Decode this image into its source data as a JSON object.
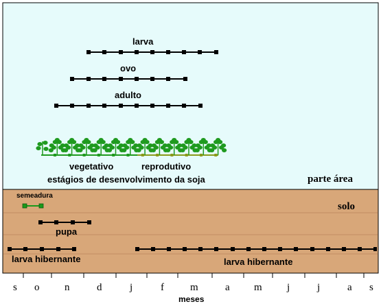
{
  "upper_zone": {
    "label": "parte área",
    "color": "#e6fbfb"
  },
  "lower_zone": {
    "label": "solo",
    "color": "#d8a779"
  },
  "timelines_above": [
    {
      "id": "larva",
      "label": "larva",
      "start": "d",
      "end": "m"
    },
    {
      "id": "ovo",
      "label": "ovo",
      "start": "n",
      "end": "f"
    },
    {
      "id": "adulto",
      "label": "adulto",
      "start": "n",
      "end": "f"
    }
  ],
  "crop": {
    "vegetative_label": "vegetativo",
    "reproductive_label": "reprodutivo",
    "caption": "estágios de desenvolvimento da soja",
    "plant_color": "#1f9a1f",
    "reproductive_line_color": "#8a9a1a"
  },
  "timelines_below": [
    {
      "id": "semeadura",
      "label": "semeadura",
      "start": "s",
      "end": "o",
      "color": "#1a9a1a"
    },
    {
      "id": "pupa",
      "label": "pupa",
      "start": "o",
      "end": "n"
    },
    {
      "id": "larva-hibernante-1",
      "label": "larva hibernante",
      "start": "s",
      "end": "o"
    },
    {
      "id": "larva-hibernante-2",
      "label": "larva hibernante",
      "start": "j",
      "end": "s"
    }
  ],
  "x_axis": {
    "ticks": [
      "s",
      "o",
      "n",
      "d",
      "j",
      "f",
      "m",
      "a",
      "m",
      "j",
      "j",
      "a",
      "s"
    ],
    "label": "meses"
  }
}
